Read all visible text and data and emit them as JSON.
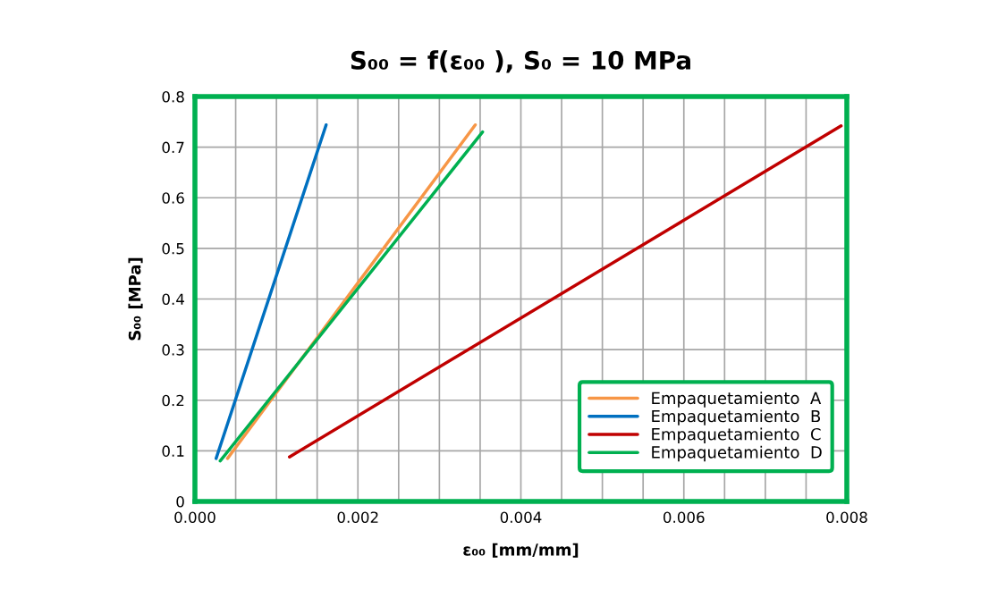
{
  "chart_data": {
    "type": "line",
    "title": "S₀₀ = f(ε₀₀ ), S₀ = 10 MPa",
    "xlabel": "ε₀₀ [mm/mm]",
    "ylabel": "S₀₀ [MPa]",
    "series": [
      {
        "name": "Empaquetamiento  A",
        "color": "#f79646",
        "x": [
          0.0004,
          0.00344
        ],
        "values": [
          0.085,
          0.744
        ]
      },
      {
        "name": "Empaquetamiento  B",
        "color": "#0070c0",
        "x": [
          0.00026,
          0.00161
        ],
        "values": [
          0.085,
          0.744
        ]
      },
      {
        "name": "Empaquetamiento  C",
        "color": "#c00000",
        "x": [
          0.00116,
          0.00793
        ],
        "values": [
          0.088,
          0.742
        ]
      },
      {
        "name": "Empaquetamiento  D",
        "color": "#00b050",
        "x": [
          0.00031,
          0.00353
        ],
        "values": [
          0.08,
          0.73
        ]
      }
    ],
    "xlim": [
      0,
      0.008
    ],
    "ylim": [
      0,
      0.8
    ],
    "xticks": [
      {
        "value": 0,
        "label": "0.000"
      },
      {
        "value": 0.0005,
        "label": null
      },
      {
        "value": 0.001,
        "label": null
      },
      {
        "value": 0.0015,
        "label": null
      },
      {
        "value": 0.002,
        "label": "0.002"
      },
      {
        "value": 0.0025,
        "label": null
      },
      {
        "value": 0.003,
        "label": null
      },
      {
        "value": 0.0035,
        "label": null
      },
      {
        "value": 0.004,
        "label": "0.004"
      },
      {
        "value": 0.0045,
        "label": null
      },
      {
        "value": 0.005,
        "label": null
      },
      {
        "value": 0.0055,
        "label": null
      },
      {
        "value": 0.006,
        "label": "0.006"
      },
      {
        "value": 0.0065,
        "label": null
      },
      {
        "value": 0.007,
        "label": null
      },
      {
        "value": 0.0075,
        "label": null
      },
      {
        "value": 0.008,
        "label": "0.008"
      }
    ],
    "yticks": [
      0,
      0.1,
      0.2,
      0.3,
      0.4,
      0.5,
      0.6,
      0.7,
      0.8
    ],
    "grid": true,
    "legend": "bottom right",
    "marker": "none",
    "line_style": "solid"
  }
}
